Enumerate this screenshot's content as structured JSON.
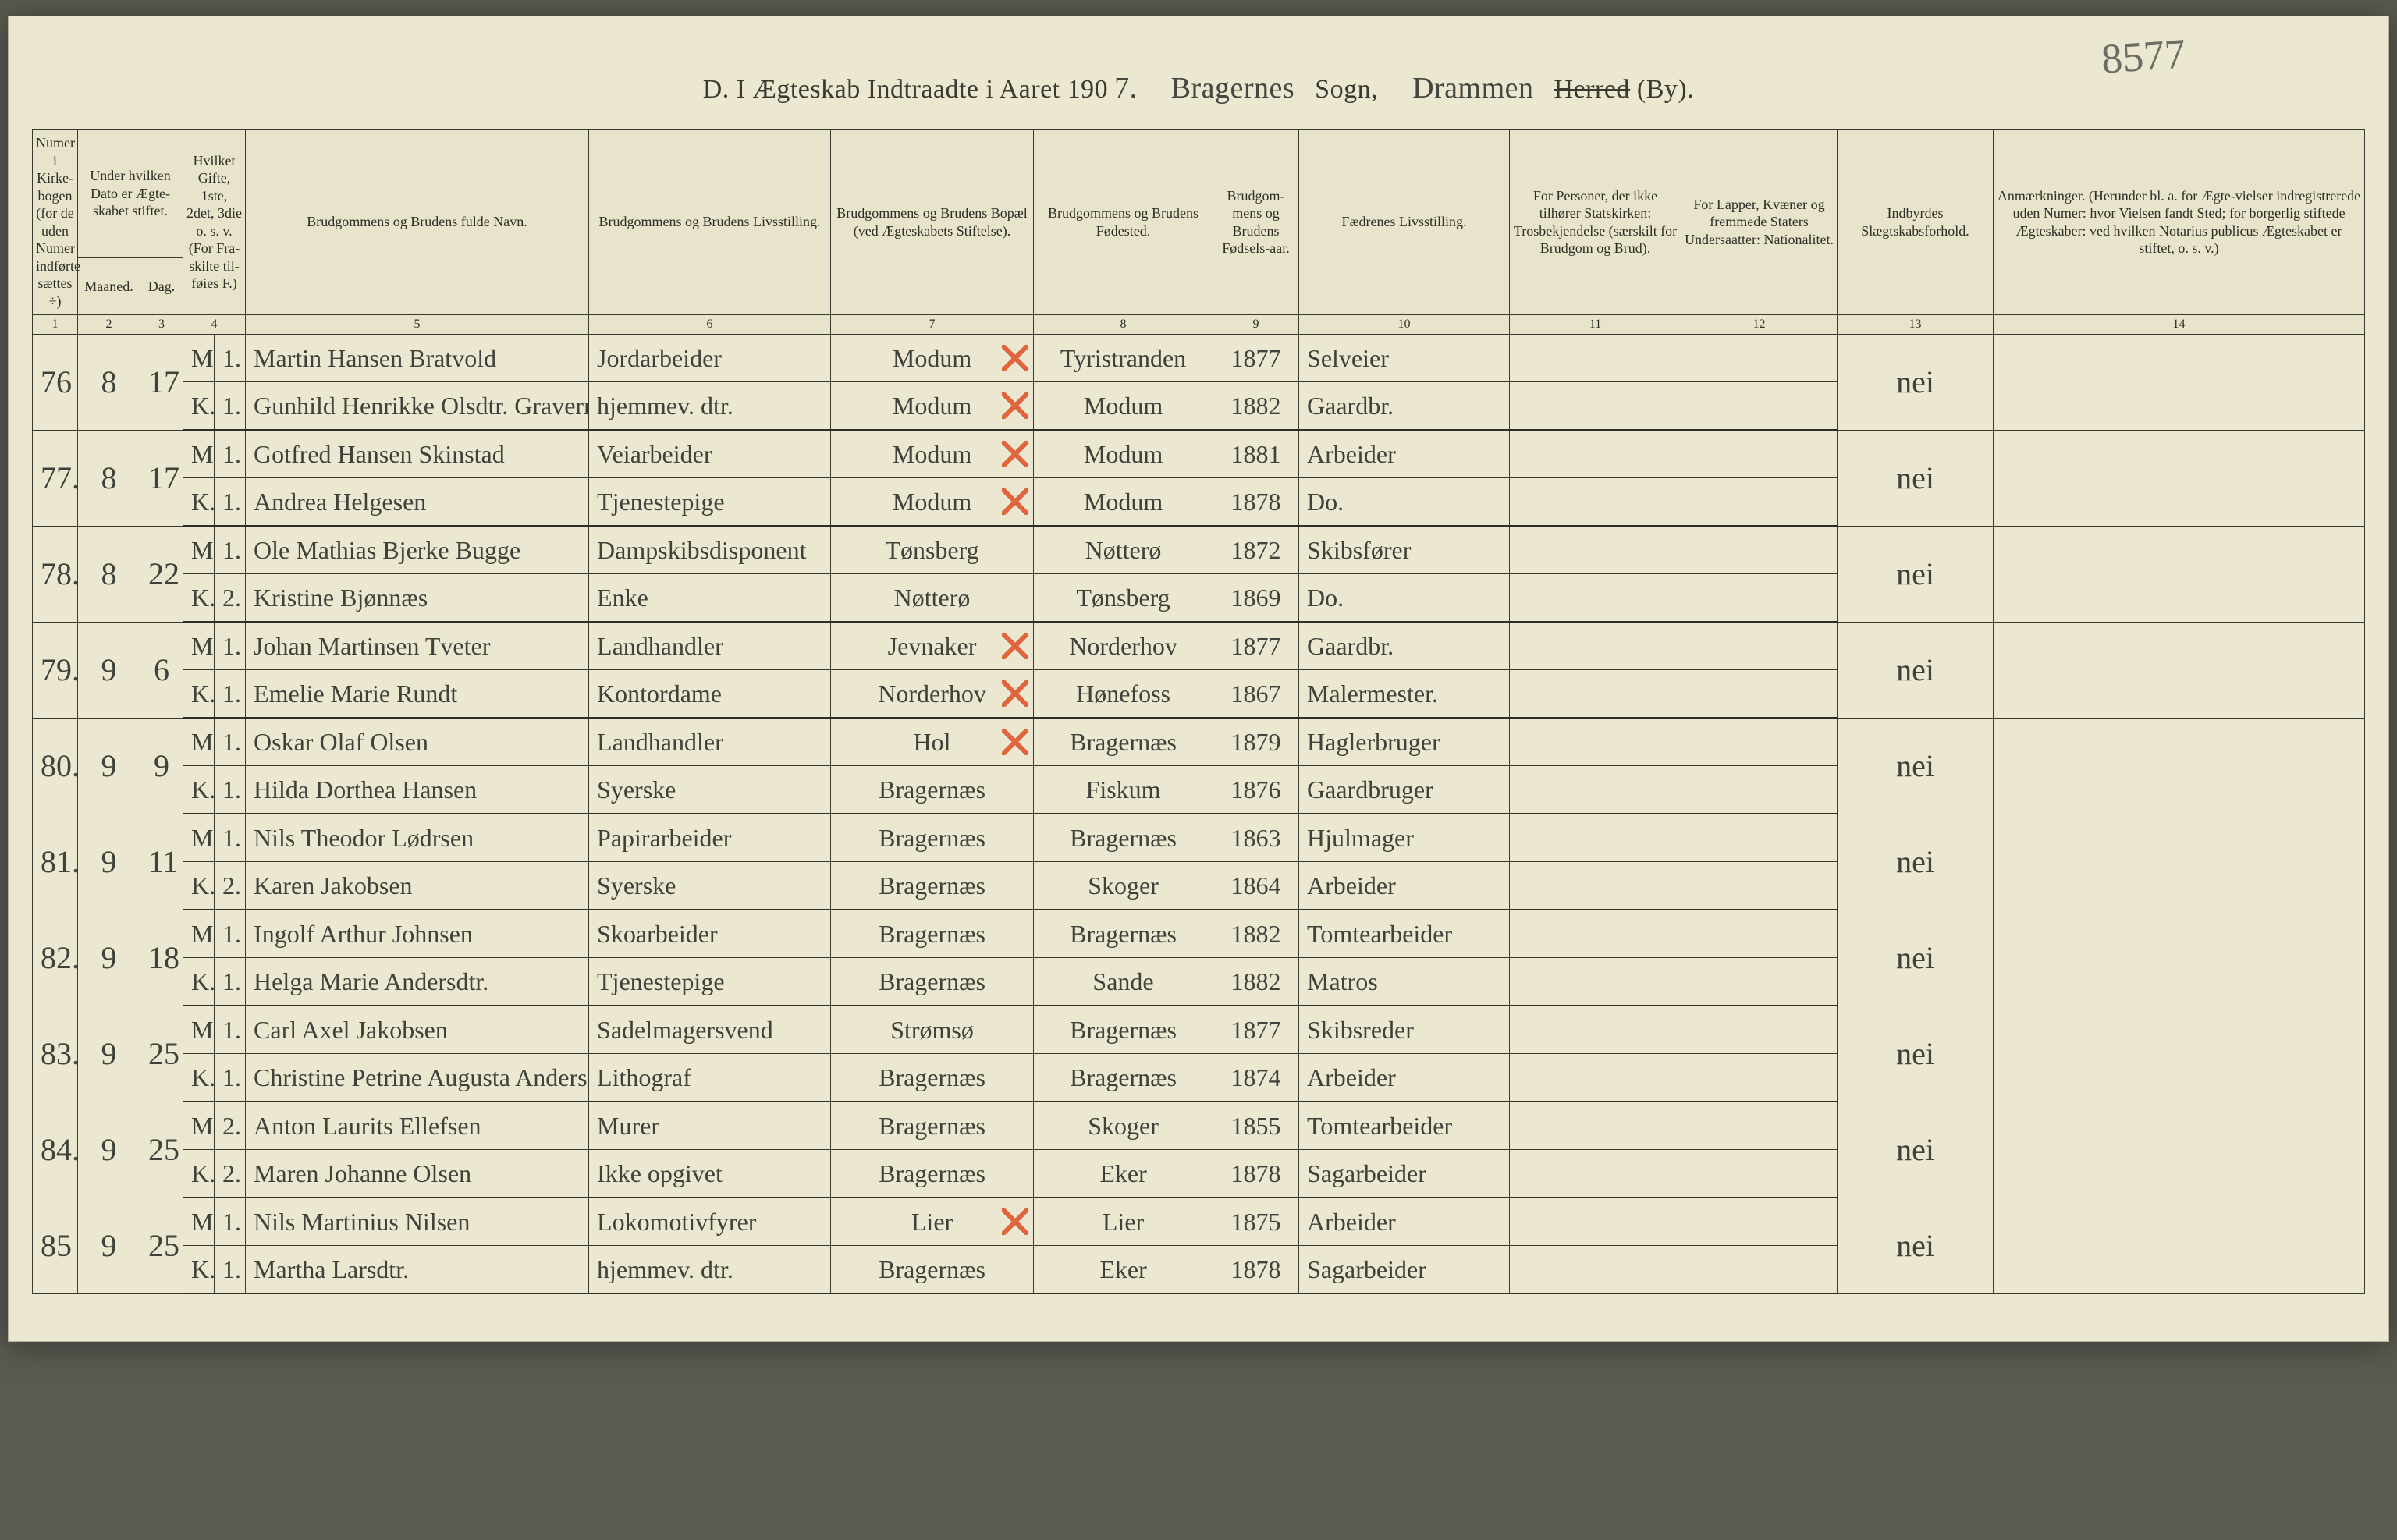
{
  "colors": {
    "page_bg": "#ece7d1",
    "ink": "#3a3a30",
    "handwriting": "#3e423a",
    "red_mark": "#e0653d",
    "outer_bg": "#5a5a52"
  },
  "stamp": "8577",
  "title": {
    "prefix": "D.  I Ægteskab Indtraadte i Aaret 190",
    "year_digit": "7.",
    "sogn_name": "Bragernes",
    "sogn_label": "Sogn,",
    "by_name": "Drammen",
    "herred_strike": "Herred",
    "by_suffix": "(By)."
  },
  "headers": {
    "c1": "Numer i Kirke-bogen (for de uden Numer indførte sættes ÷)",
    "c2_3_top": "Under hvilken Dato er Ægte-skabet stiftet.",
    "c2": "Maaned.",
    "c3": "Dag.",
    "c4": "Hvilket Gifte, 1ste, 2det, 3die o. s. v. (For Fra-skilte til-føies F.)",
    "c5": "Brudgommens og Brudens fulde Navn.",
    "c6": "Brudgommens og Brudens Livsstilling.",
    "c7": "Brudgommens og Brudens Bopæl (ved Ægteskabets Stiftelse).",
    "c8": "Brudgommens og Brudens Fødested.",
    "c9": "Brudgom-mens og Brudens Fødsels-aar.",
    "c10": "Fædrenes Livsstilling.",
    "c11": "For Personer, der ikke tilhører Statskirken: Trosbekjendelse (særskilt for Brudgom og Brud).",
    "c12": "For Lapper, Kvæner og fremmede Staters Undersaatter: Nationalitet.",
    "c13": "Indbyrdes Slægtskabsforhold.",
    "c14": "Anmærkninger. (Herunder bl. a. for Ægte-vielser indregistrerede uden Numer: hvor Vielsen fandt Sted; for borgerlig stiftede Ægteskaber: ved hvilken Notarius publicus Ægteskabet er stiftet, o. s. v.)"
  },
  "colnums": [
    "1",
    "2",
    "3",
    "4",
    "5",
    "6",
    "7",
    "8",
    "9",
    "10",
    "11",
    "12",
    "13",
    "14"
  ],
  "rows": [
    {
      "num": "76",
      "month": "8",
      "day": "17",
      "m": {
        "mk": "M.",
        "gifte": "1.",
        "name": "Martin Hansen Bratvold",
        "stilling": "Jordarbeider",
        "bopel": "Modum",
        "bopel_x": true,
        "fodested": "Tyristranden",
        "aar": "1877",
        "faedre": "Selveier"
      },
      "k": {
        "mk": "K.",
        "gifte": "1.",
        "name": "Gunhild Henrikke Olsdtr. Gravermoen",
        "stilling": "hjemmev. dtr.",
        "bopel": "Modum",
        "bopel_x": true,
        "fodested": "Modum",
        "aar": "1882",
        "faedre": "Gaardbr."
      },
      "slegt": "nei"
    },
    {
      "num": "77.",
      "month": "8",
      "day": "17",
      "m": {
        "mk": "M.",
        "gifte": "1.",
        "name": "Gotfred Hansen Skinstad",
        "stilling": "Veiarbeider",
        "bopel": "Modum",
        "bopel_x": true,
        "fodested": "Modum",
        "aar": "1881",
        "faedre": "Arbeider"
      },
      "k": {
        "mk": "K.",
        "gifte": "1.",
        "name": "Andrea Helgesen",
        "stilling": "Tjenestepige",
        "bopel": "Modum",
        "bopel_x": true,
        "fodested": "Modum",
        "aar": "1878",
        "faedre": "Do."
      },
      "slegt": "nei"
    },
    {
      "num": "78.",
      "month": "8",
      "day": "22",
      "m": {
        "mk": "M.",
        "gifte": "1.",
        "name": "Ole Mathias Bjerke Bugge",
        "stilling": "Dampskibsdisponent",
        "bopel": "Tønsberg",
        "bopel_x": false,
        "fodested": "Nøtterø",
        "aar": "1872",
        "faedre": "Skibsfører"
      },
      "k": {
        "mk": "K.",
        "gifte": "2.",
        "name": "Kristine Bjønnæs",
        "stilling": "Enke",
        "bopel": "Nøtterø",
        "bopel_x": false,
        "fodested": "Tønsberg",
        "aar": "1869",
        "faedre": "Do."
      },
      "slegt": "nei"
    },
    {
      "num": "79.",
      "month": "9",
      "day": "6",
      "m": {
        "mk": "M.",
        "gifte": "1.",
        "name": "Johan Martinsen Tveter",
        "stilling": "Landhandler",
        "bopel": "Jevnaker",
        "bopel_x": true,
        "fodested": "Norderhov",
        "aar": "1877",
        "faedre": "Gaardbr."
      },
      "k": {
        "mk": "K.",
        "gifte": "1.",
        "name": "Emelie Marie Rundt",
        "stilling": "Kontordame",
        "bopel": "Norderhov",
        "bopel_x": true,
        "fodested": "Hønefoss",
        "aar": "1867",
        "faedre": "Malermester."
      },
      "slegt": "nei"
    },
    {
      "num": "80.",
      "month": "9",
      "day": "9",
      "m": {
        "mk": "M.",
        "gifte": "1.",
        "name": "Oskar Olaf Olsen",
        "stilling": "Landhandler",
        "bopel": "Hol",
        "bopel_x": true,
        "fodested": "Bragernæs",
        "aar": "1879",
        "faedre": "Haglerbruger"
      },
      "k": {
        "mk": "K.",
        "gifte": "1.",
        "name": "Hilda Dorthea Hansen",
        "stilling": "Syerske",
        "bopel": "Bragernæs",
        "bopel_x": false,
        "fodested": "Fiskum",
        "aar": "1876",
        "faedre": "Gaardbruger"
      },
      "slegt": "nei"
    },
    {
      "num": "81.",
      "month": "9",
      "day": "11",
      "m": {
        "mk": "M.",
        "gifte": "1.",
        "name": "Nils Theodor Lødrsen",
        "stilling": "Papirarbeider",
        "bopel": "Bragernæs",
        "bopel_x": false,
        "fodested": "Bragernæs",
        "aar": "1863",
        "faedre": "Hjulmager"
      },
      "k": {
        "mk": "K.",
        "gifte": "2.",
        "name": "Karen Jakobsen",
        "stilling": "Syerske",
        "bopel": "Bragernæs",
        "bopel_x": false,
        "fodested": "Skoger",
        "aar": "1864",
        "faedre": "Arbeider"
      },
      "slegt": "nei"
    },
    {
      "num": "82.",
      "month": "9",
      "day": "18",
      "m": {
        "mk": "M.",
        "gifte": "1.",
        "name": "Ingolf Arthur Johnsen",
        "stilling": "Skoarbeider",
        "bopel": "Bragernæs",
        "bopel_x": false,
        "fodested": "Bragernæs",
        "aar": "1882",
        "faedre": "Tomtearbeider"
      },
      "k": {
        "mk": "K.",
        "gifte": "1.",
        "name": "Helga Marie Andersdtr.",
        "stilling": "Tjenestepige",
        "bopel": "Bragernæs",
        "bopel_x": false,
        "fodested": "Sande",
        "aar": "1882",
        "faedre": "Matros"
      },
      "slegt": "nei"
    },
    {
      "num": "83.",
      "month": "9",
      "day": "25",
      "m": {
        "mk": "M.",
        "gifte": "1.",
        "name": "Carl Axel Jakobsen",
        "stilling": "Sadelmagersvend",
        "bopel": "Strømsø",
        "bopel_x": false,
        "fodested": "Bragernæs",
        "aar": "1877",
        "faedre": "Skibsreder"
      },
      "k": {
        "mk": "K.",
        "gifte": "1.",
        "name": "Christine Petrine Augusta Andersen",
        "stilling": "Lithograf",
        "bopel": "Bragernæs",
        "bopel_x": false,
        "fodested": "Bragernæs",
        "aar": "1874",
        "faedre": "Arbeider"
      },
      "slegt": "nei"
    },
    {
      "num": "84.",
      "month": "9",
      "day": "25",
      "m": {
        "mk": "M.",
        "gifte": "2.",
        "name": "Anton Laurits Ellefsen",
        "stilling": "Murer",
        "bopel": "Bragernæs",
        "bopel_x": false,
        "fodested": "Skoger",
        "aar": "1855",
        "faedre": "Tomtearbeider"
      },
      "k": {
        "mk": "K.",
        "gifte": "2.",
        "name": "Maren Johanne Olsen",
        "stilling": "Ikke opgivet",
        "bopel": "Bragernæs",
        "bopel_x": false,
        "fodested": "Eker",
        "aar": "1878",
        "faedre": "Sagarbeider"
      },
      "slegt": "nei"
    },
    {
      "num": "85",
      "month": "9",
      "day": "25",
      "m": {
        "mk": "M.",
        "gifte": "1.",
        "name": "Nils Martinius Nilsen",
        "stilling": "Lokomotivfyrer",
        "bopel": "Lier",
        "bopel_x": true,
        "fodested": "Lier",
        "aar": "1875",
        "faedre": "Arbeider"
      },
      "k": {
        "mk": "K.",
        "gifte": "1.",
        "name": "Martha Larsdtr.",
        "stilling": "hjemmev. dtr.",
        "bopel": "Bragernæs",
        "bopel_x": false,
        "fodested": "Eker",
        "aar": "1878",
        "faedre": "Sagarbeider"
      },
      "slegt": "nei"
    }
  ]
}
